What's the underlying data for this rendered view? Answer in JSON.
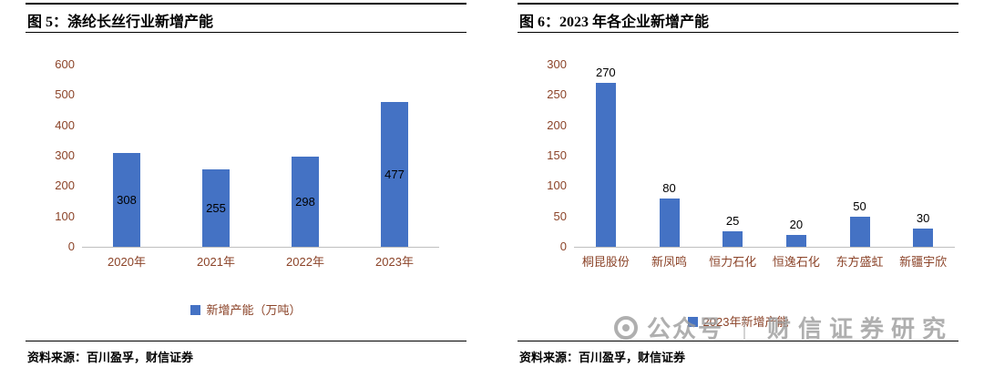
{
  "page": {
    "background": "#ffffff"
  },
  "colors": {
    "bar": "#4472C4",
    "axis_text": "#8B4328",
    "data_label": "#000000",
    "rule": "#000000",
    "axis_line": "#BFBFBF",
    "watermark": "#9C9C9C"
  },
  "chart_data": [
    {
      "type": "bar",
      "title": "图 5：涤纶长丝行业新增产能",
      "categories": [
        "2020年",
        "2021年",
        "2022年",
        "2023年"
      ],
      "values": [
        308,
        255,
        298,
        477
      ],
      "xlabel": "",
      "ylabel": "",
      "ylim": [
        0,
        600
      ],
      "yticks": [
        0,
        100,
        200,
        300,
        400,
        500,
        600
      ],
      "grid": false,
      "legend_label": "新增产能（万吨）",
      "legend_position": "bottom",
      "data_label_position": "inside-center",
      "source": "资料来源：百川盈孚，财信证券"
    },
    {
      "type": "bar",
      "title": "图 6：2023 年各企业新增产能",
      "categories": [
        "桐昆股份",
        "新凤鸣",
        "恒力石化",
        "恒逸石化",
        "东方盛虹",
        "新疆宇欣"
      ],
      "values": [
        270,
        80,
        25,
        20,
        50,
        30
      ],
      "xlabel": "",
      "ylabel": "",
      "ylim": [
        0,
        300
      ],
      "yticks": [
        0,
        50,
        100,
        150,
        200,
        250,
        300
      ],
      "grid": false,
      "legend_label": "2023年新增产能",
      "legend_position": "bottom",
      "data_label_position": "outside-end",
      "source": "资料来源：百川盈孚，财信证券"
    }
  ],
  "watermark": {
    "logo": "circle-logo",
    "text_left": "公众号",
    "separator": "｜",
    "text_right": "财信证券研究"
  }
}
